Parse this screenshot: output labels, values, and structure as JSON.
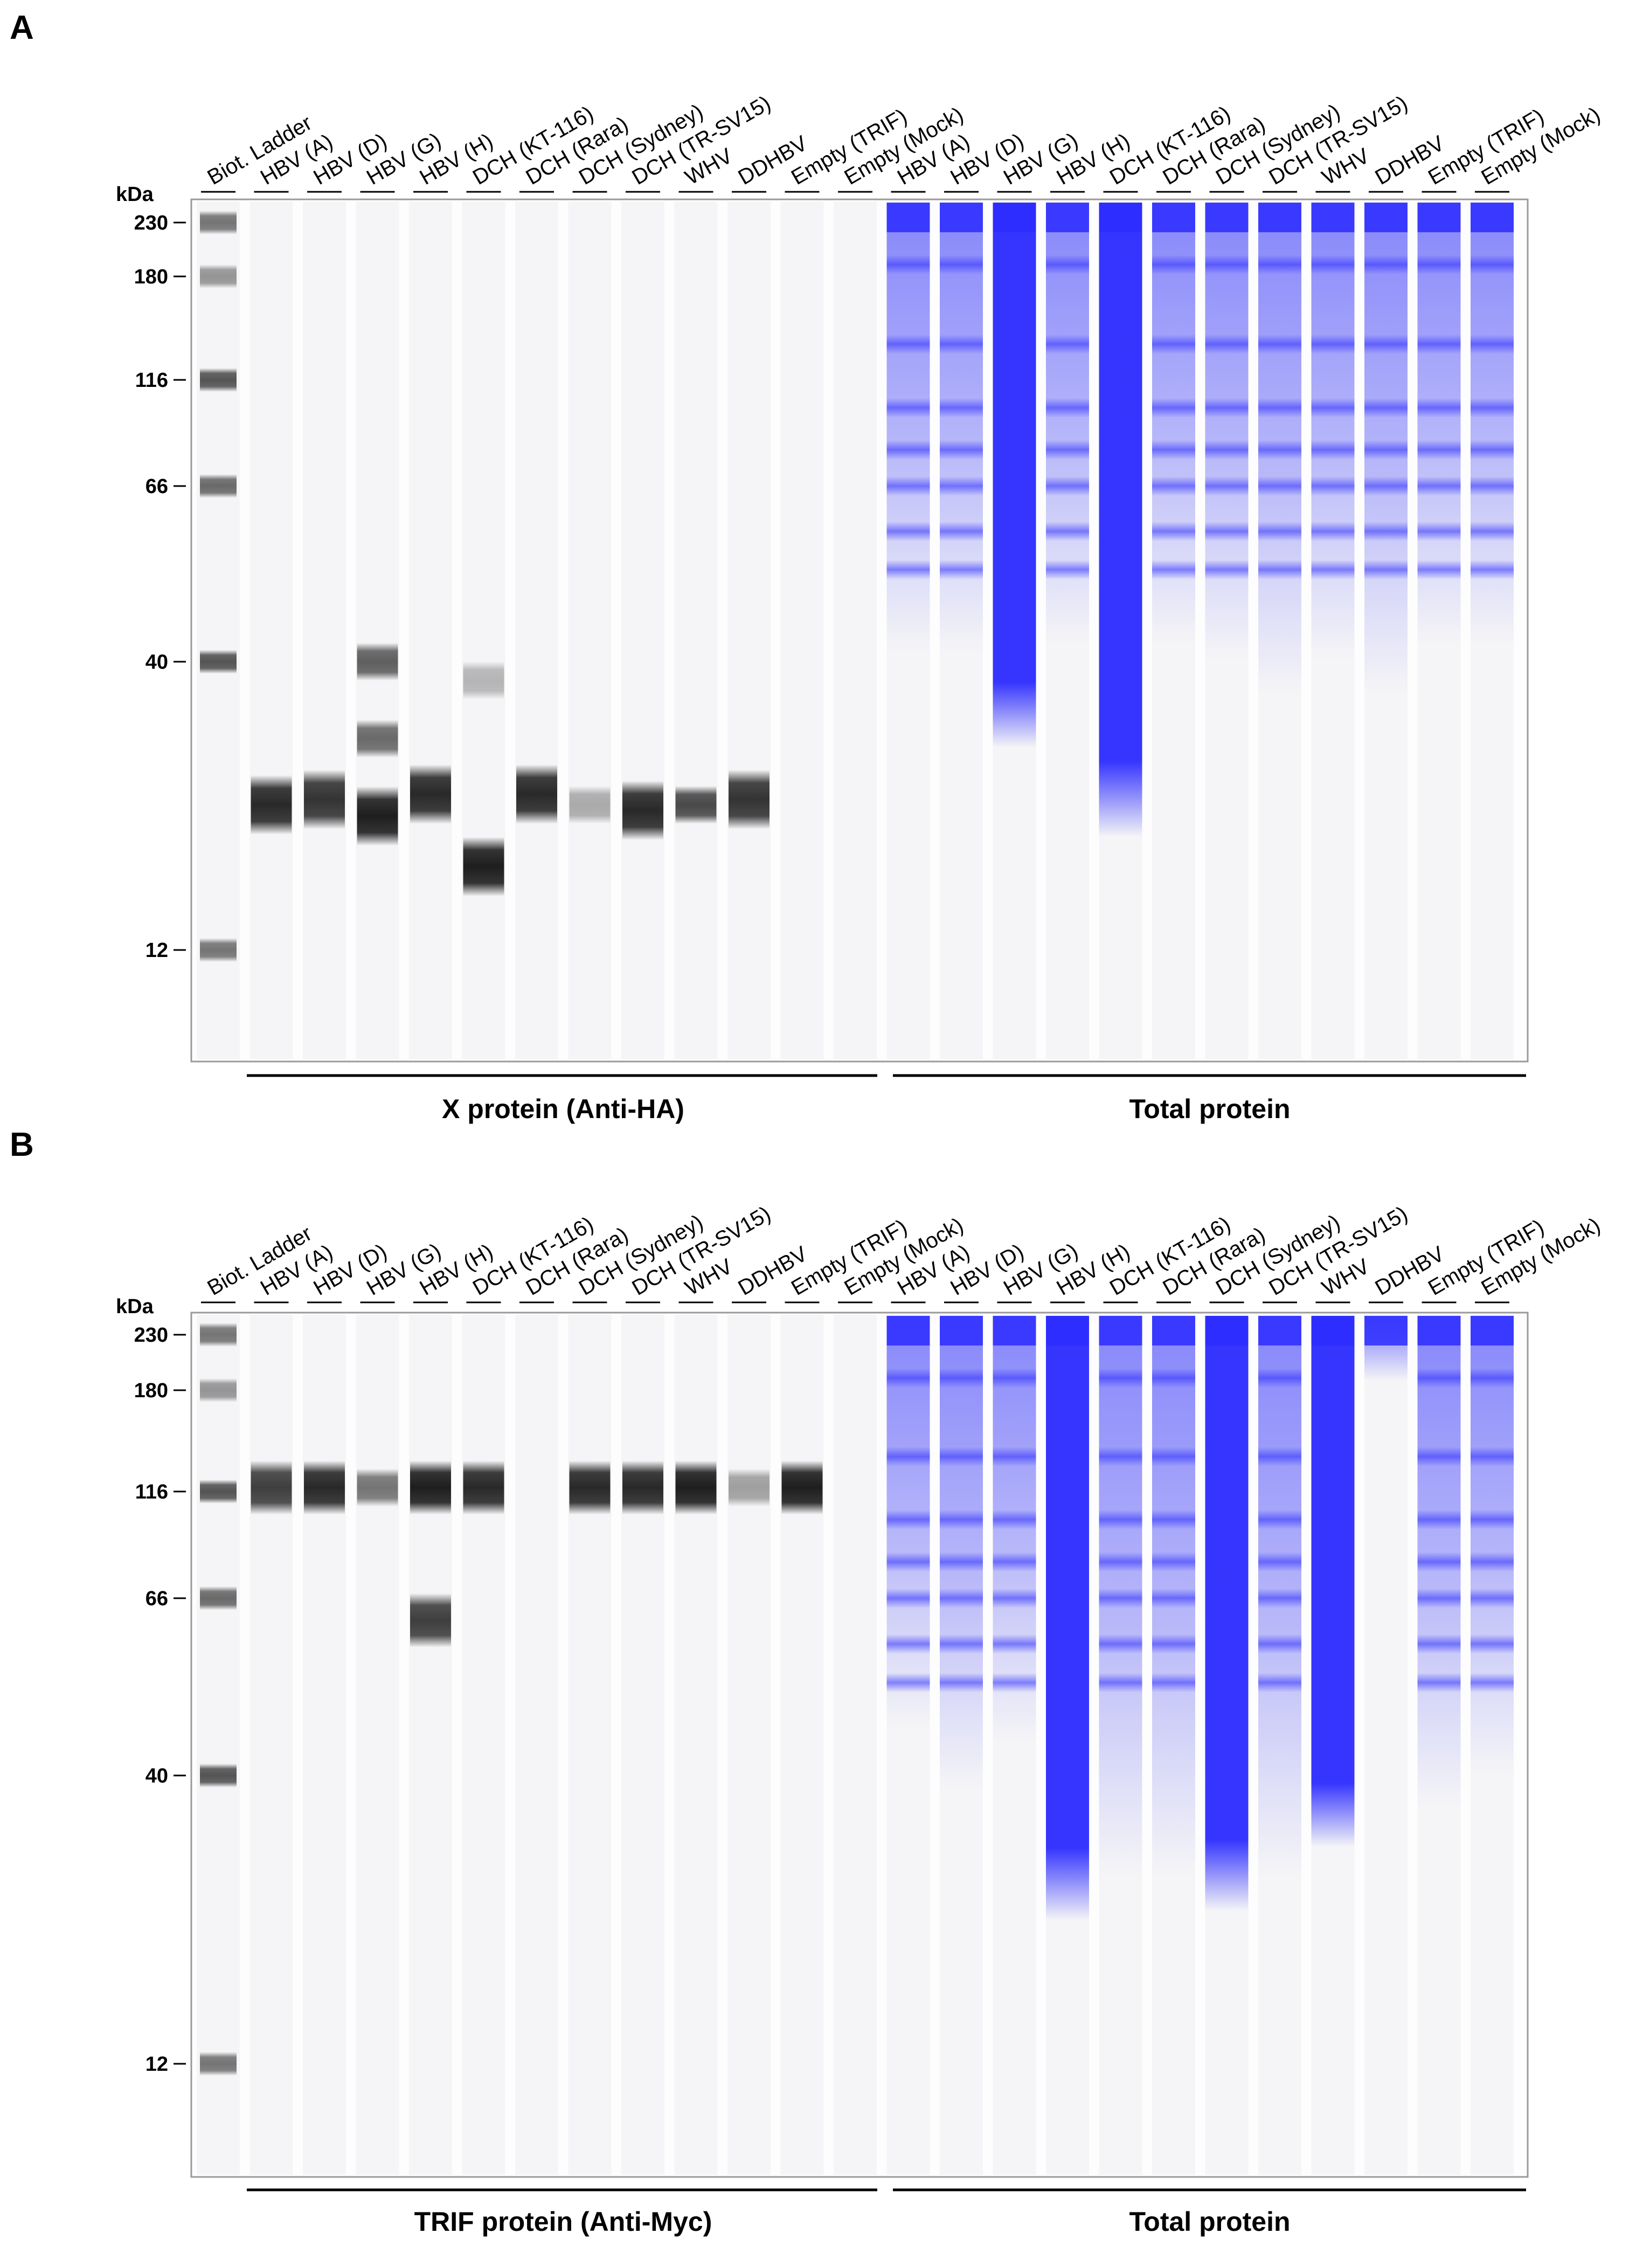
{
  "figure": {
    "background": "#ffffff",
    "blot_color": "#1e1e1e",
    "stain_color": "#2b2bff",
    "panels": [
      {
        "letter": "A",
        "kda_unit": "kDa",
        "lanes": [
          "Biot. Ladder",
          "HBV (A)",
          "HBV (D)",
          "HBV (G)",
          "HBV (H)",
          "DCH (KT-116)",
          "DCH (Rara)",
          "DCH (Sydney)",
          "DCH (TR-SV15)",
          "WHV",
          "DDHBV",
          "Empty (TRIF)",
          "Empty (Mock)",
          "HBV (A)",
          "HBV (D)",
          "HBV (G)",
          "HBV (H)",
          "DCH (KT-116)",
          "DCH (Rara)",
          "DCH (Sydney)",
          "DCH (TR-SV15)",
          "WHV",
          "DDHBV",
          "Empty (TRIF)",
          "Empty (Mock)"
        ],
        "markers_kda": [
          "230",
          "180",
          "116",
          "66",
          "40",
          "12"
        ],
        "groups": [
          {
            "label": "X protein (Anti-HA)",
            "lanes_from": 1,
            "lanes_to": 12
          },
          {
            "label": "Total protein",
            "lanes_from": 13,
            "lanes_to": 24
          }
        ],
        "blot_bands": [
          {
            "lane": 0,
            "kda": 230,
            "intensity": 0.6
          },
          {
            "lane": 0,
            "kda": 180,
            "intensity": 0.45
          },
          {
            "lane": 0,
            "kda": 116,
            "intensity": 0.75
          },
          {
            "lane": 0,
            "kda": 66,
            "intensity": 0.65
          },
          {
            "lane": 0,
            "kda": 40,
            "intensity": 0.75
          },
          {
            "lane": 0,
            "kda": 12,
            "intensity": 0.6
          },
          {
            "lane": 1,
            "kda": 22,
            "intensity": 0.95
          },
          {
            "lane": 2,
            "kda": 22.5,
            "intensity": 0.9
          },
          {
            "lane": 3,
            "kda": 40,
            "intensity": 0.7
          },
          {
            "lane": 3,
            "kda": 29,
            "intensity": 0.65
          },
          {
            "lane": 3,
            "kda": 21,
            "intensity": 1.0
          },
          {
            "lane": 4,
            "kda": 23,
            "intensity": 0.95
          },
          {
            "lane": 5,
            "kda": 37,
            "intensity": 0.3
          },
          {
            "lane": 5,
            "kda": 17,
            "intensity": 1.0
          },
          {
            "lane": 6,
            "kda": 23,
            "intensity": 0.95
          },
          {
            "lane": 7,
            "kda": 22,
            "intensity": 0.35
          },
          {
            "lane": 8,
            "kda": 21.5,
            "intensity": 0.95
          },
          {
            "lane": 9,
            "kda": 22,
            "intensity": 0.8
          },
          {
            "lane": 10,
            "kda": 22.5,
            "intensity": 0.9
          }
        ],
        "stain_heavy_lanes": [
          15,
          17
        ],
        "stain_bottom_kda": [
          45,
          45,
          32,
          46,
          22,
          46,
          44,
          40,
          44,
          40,
          46,
          46
        ]
      },
      {
        "letter": "B",
        "kda_unit": "kDa",
        "lanes": [
          "Biot. Ladder",
          "HBV (A)",
          "HBV (D)",
          "HBV (G)",
          "HBV (H)",
          "DCH (KT-116)",
          "DCH (Rara)",
          "DCH (Sydney)",
          "DCH (TR-SV15)",
          "WHV",
          "DDHBV",
          "Empty (TRIF)",
          "Empty (Mock)",
          "HBV (A)",
          "HBV (D)",
          "HBV (G)",
          "HBV (H)",
          "DCH (KT-116)",
          "DCH (Rara)",
          "DCH (Sydney)",
          "DCH (TR-SV15)",
          "WHV",
          "DDHBV",
          "Empty (TRIF)",
          "Empty (Mock)"
        ],
        "markers_kda": [
          "230",
          "180",
          "116",
          "66",
          "40",
          "12"
        ],
        "groups": [
          {
            "label": "TRIF protein (Anti-Myc)",
            "lanes_from": 1,
            "lanes_to": 12
          },
          {
            "label": "Total protein",
            "lanes_from": 13,
            "lanes_to": 24
          }
        ],
        "blot_bands": [
          {
            "lane": 0,
            "kda": 230,
            "intensity": 0.6
          },
          {
            "lane": 0,
            "kda": 180,
            "intensity": 0.45
          },
          {
            "lane": 0,
            "kda": 116,
            "intensity": 0.75
          },
          {
            "lane": 0,
            "kda": 66,
            "intensity": 0.65
          },
          {
            "lane": 0,
            "kda": 40,
            "intensity": 0.75
          },
          {
            "lane": 0,
            "kda": 12,
            "intensity": 0.6
          },
          {
            "lane": 1,
            "kda": 118,
            "intensity": 0.85
          },
          {
            "lane": 2,
            "kda": 118,
            "intensity": 0.95
          },
          {
            "lane": 3,
            "kda": 118,
            "intensity": 0.6
          },
          {
            "lane": 4,
            "kda": 118,
            "intensity": 1.0
          },
          {
            "lane": 4,
            "kda": 62,
            "intensity": 0.85
          },
          {
            "lane": 5,
            "kda": 118,
            "intensity": 0.95
          },
          {
            "lane": 7,
            "kda": 118,
            "intensity": 0.95
          },
          {
            "lane": 8,
            "kda": 118,
            "intensity": 0.95
          },
          {
            "lane": 9,
            "kda": 118,
            "intensity": 1.0
          },
          {
            "lane": 10,
            "kda": 118,
            "intensity": 0.4
          },
          {
            "lane": 11,
            "kda": 118,
            "intensity": 1.0
          }
        ],
        "stain_heavy_lanes": [
          16,
          19,
          21
        ],
        "stain_bottom_kda": [
          50,
          42,
          48,
          25,
          30,
          30,
          26,
          30,
          34,
          230,
          40,
          44
        ]
      }
    ]
  }
}
